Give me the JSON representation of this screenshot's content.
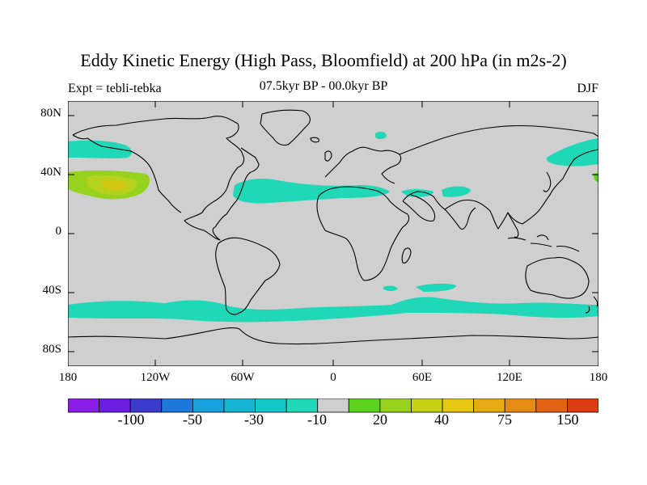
{
  "title": "Eddy Kinetic Energy (High Pass, Bloomfield) at 200 hPa (in m2s-2)",
  "subtitle_left": "Expt = tebli-tebka",
  "subtitle_center": "07.5kyr BP - 00.0kyr BP",
  "subtitle_right": "DJF",
  "lat_labels": [
    "80N",
    "40N",
    "0",
    "40S",
    "80S"
  ],
  "lon_labels": [
    "180",
    "120W",
    "60W",
    "0",
    "60E",
    "120E",
    "180"
  ],
  "colorbar": {
    "colors": [
      "#8a1ee6",
      "#6a1ee0",
      "#3c3ccc",
      "#1e78dc",
      "#16a0dc",
      "#14b4d2",
      "#14c8c8",
      "#20d8b8",
      "#cfcfcf",
      "#5ad21e",
      "#96d21e",
      "#c8d214",
      "#e6c814",
      "#e6aa14",
      "#e68c14",
      "#e06414",
      "#dc3c14"
    ],
    "labels": [
      "-100",
      "-50",
      "-30",
      "-10",
      "20",
      "40",
      "75",
      "150"
    ]
  },
  "palette": {
    "land_ocean": "#cfcfcf",
    "cyan_band": "#20d8b8",
    "light_green": "#96d21e",
    "mid_green": "#b4d21e",
    "yellow": "#d2c814",
    "green": "#5ad21e"
  }
}
